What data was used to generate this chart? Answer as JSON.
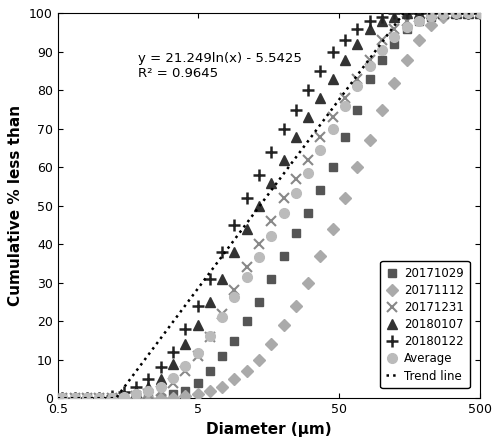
{
  "title": "",
  "xlabel": "Diameter (μm)",
  "ylabel": "Cumulative % less than",
  "xlim": [
    0.5,
    500
  ],
  "ylim": [
    0,
    100
  ],
  "equation": "y = 21.249ln(x) - 5.5425",
  "r2": "R² = 0.9645",
  "series": {
    "20171029": {
      "color": "#555555",
      "marker": "s",
      "markersize": 6,
      "x": [
        0.54,
        0.66,
        0.81,
        0.99,
        1.21,
        1.48,
        1.81,
        2.21,
        2.7,
        3.3,
        4.04,
        4.94,
        6.04,
        7.39,
        9.04,
        11.05,
        13.51,
        16.52,
        20.21,
        24.71,
        30.2,
        36.94,
        45.18,
        55.25,
        67.57,
        82.64,
        101.1,
        123.6,
        151.1,
        184.8,
        226.1,
        276.5,
        338.2,
        413.6,
        500
      ],
      "y": [
        0,
        0,
        0,
        0,
        0,
        0,
        0,
        0,
        0,
        1,
        2,
        4,
        7,
        11,
        15,
        20,
        25,
        31,
        37,
        43,
        48,
        54,
        60,
        68,
        75,
        83,
        88,
        92,
        96,
        98,
        99,
        100,
        100,
        100,
        100
      ]
    },
    "20171112": {
      "color": "#aaaaaa",
      "marker": "D",
      "markersize": 6,
      "x": [
        0.54,
        0.66,
        0.81,
        0.99,
        1.21,
        1.48,
        1.81,
        2.21,
        2.7,
        3.3,
        4.04,
        4.94,
        6.04,
        7.39,
        9.04,
        11.05,
        13.51,
        16.52,
        20.21,
        24.71,
        30.2,
        36.94,
        45.18,
        55.25,
        67.57,
        82.64,
        101.1,
        123.6,
        151.1,
        184.8,
        226.1,
        276.5,
        338.2,
        413.6,
        500
      ],
      "y": [
        0,
        0,
        0,
        0,
        0,
        0,
        0,
        0,
        0,
        0,
        0.5,
        1,
        2,
        3,
        5,
        7,
        10,
        14,
        19,
        24,
        30,
        37,
        44,
        52,
        60,
        67,
        75,
        82,
        88,
        93,
        97,
        99,
        100,
        100,
        100
      ]
    },
    "20171231": {
      "color": "#888888",
      "marker": "x",
      "markersize": 7,
      "x": [
        0.54,
        0.66,
        0.81,
        0.99,
        1.21,
        1.48,
        1.81,
        2.21,
        2.7,
        3.3,
        4.04,
        4.94,
        6.04,
        7.39,
        9.04,
        11.05,
        13.51,
        16.52,
        20.21,
        24.71,
        30.2,
        36.94,
        45.18,
        55.25,
        67.57,
        82.64,
        101.1,
        123.6,
        151.1,
        184.8,
        226.1,
        276.5,
        338.2,
        413.6,
        500
      ],
      "y": [
        0,
        0,
        0,
        0,
        0,
        0,
        0.5,
        1,
        2,
        4,
        7,
        11,
        16,
        22,
        28,
        34,
        40,
        46,
        52,
        57,
        62,
        68,
        73,
        78,
        83,
        88,
        93,
        96,
        98,
        99,
        100,
        100,
        100,
        100,
        100
      ]
    },
    "20180107": {
      "color": "#333333",
      "marker": "^",
      "markersize": 7,
      "x": [
        0.54,
        0.66,
        0.81,
        0.99,
        1.21,
        1.48,
        1.81,
        2.21,
        2.7,
        3.3,
        4.04,
        4.94,
        6.04,
        7.39,
        9.04,
        11.05,
        13.51,
        16.52,
        20.21,
        24.71,
        30.2,
        36.94,
        45.18,
        55.25,
        67.57,
        82.64,
        101.1,
        123.6,
        151.1,
        184.8,
        226.1,
        276.5,
        338.2,
        413.6,
        500
      ],
      "y": [
        0,
        0,
        0,
        0,
        0,
        0.5,
        1.5,
        3,
        5,
        9,
        14,
        19,
        25,
        31,
        38,
        44,
        50,
        56,
        62,
        68,
        73,
        78,
        83,
        88,
        92,
        96,
        98,
        99,
        100,
        100,
        100,
        100,
        100,
        100,
        100
      ]
    },
    "20180122": {
      "color": "#222222",
      "marker": "+",
      "markersize": 8,
      "x": [
        0.54,
        0.66,
        0.81,
        0.99,
        1.21,
        1.48,
        1.81,
        2.21,
        2.7,
        3.3,
        4.04,
        4.94,
        6.04,
        7.39,
        9.04,
        11.05,
        13.51,
        16.52,
        20.21,
        24.71,
        30.2,
        36.94,
        45.18,
        55.25,
        67.57,
        82.64,
        101.1,
        123.6,
        151.1,
        184.8,
        226.1,
        276.5,
        338.2,
        413.6,
        500
      ],
      "y": [
        0,
        0,
        0,
        0,
        0.5,
        1.5,
        3,
        5,
        8,
        12,
        18,
        24,
        31,
        38,
        45,
        52,
        58,
        64,
        70,
        75,
        80,
        85,
        90,
        93,
        96,
        98,
        99,
        100,
        100,
        100,
        100,
        100,
        100,
        100,
        100
      ]
    },
    "Average": {
      "color": "#bbbbbb",
      "marker": "o",
      "markersize": 7,
      "x": [
        0.54,
        0.66,
        0.81,
        0.99,
        1.21,
        1.48,
        1.81,
        2.21,
        2.7,
        3.3,
        4.04,
        4.94,
        6.04,
        7.39,
        9.04,
        11.05,
        13.51,
        16.52,
        20.21,
        24.71,
        30.2,
        36.94,
        45.18,
        55.25,
        67.57,
        82.64,
        101.1,
        123.6,
        151.1,
        184.8,
        226.1,
        276.5,
        338.2,
        413.6,
        500
      ],
      "y": [
        0,
        0,
        0,
        0,
        0.1,
        0.4,
        1,
        1.8,
        3,
        5.2,
        8.3,
        11.8,
        16.2,
        21,
        26.2,
        31.4,
        36.6,
        42.2,
        48,
        53.4,
        58.6,
        64.4,
        70,
        75.8,
        81.2,
        86.4,
        90.6,
        93.8,
        96.4,
        98,
        99.2,
        99.8,
        100,
        100,
        100
      ]
    }
  },
  "xticks": [
    0.5,
    5,
    50,
    500
  ],
  "xtick_labels": [
    "0.5",
    "5",
    "50",
    "500"
  ],
  "yticks": [
    0,
    10,
    20,
    30,
    40,
    50,
    60,
    70,
    80,
    90,
    100
  ],
  "background_color": "#ffffff"
}
